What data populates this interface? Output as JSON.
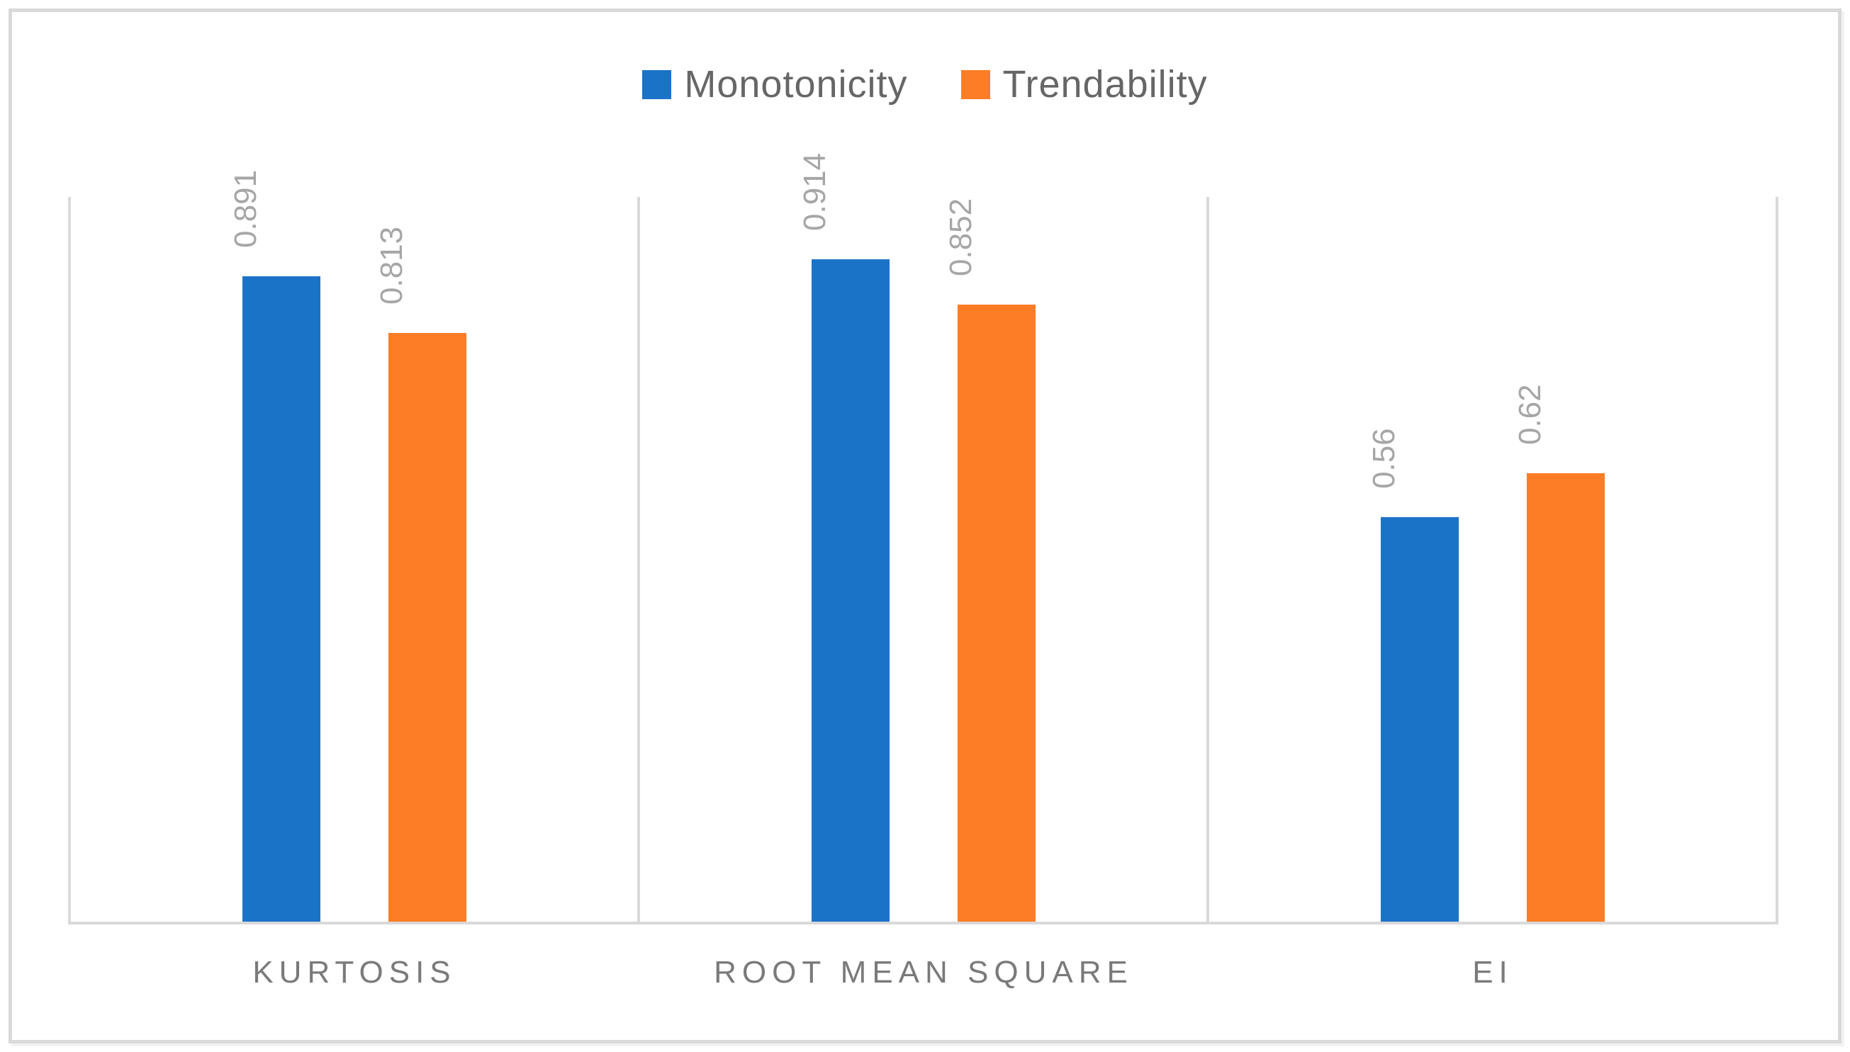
{
  "chart_data": {
    "type": "bar",
    "title": "",
    "xlabel": "",
    "ylabel": "",
    "categories": [
      "KURTOSIS",
      "ROOT MEAN SQUARE",
      "EI"
    ],
    "series": [
      {
        "name": "Monotonicity",
        "color": "#1B73C8",
        "values": [
          0.891,
          0.914,
          0.56
        ],
        "data_labels": [
          "0.891",
          "0.914",
          "0.56"
        ]
      },
      {
        "name": "Trendability",
        "color": "#FC7D26",
        "values": [
          0.813,
          0.852,
          0.62
        ],
        "data_labels": [
          "0.813",
          "0.852",
          "0.62"
        ]
      }
    ],
    "ylim": [
      0,
      1.0
    ],
    "y_axis_labels_visible": false,
    "grid": "vertical category separators only",
    "legend_position": "top-center",
    "data_label_rotation": -90,
    "colors": {
      "background": "#FFFFFF",
      "border": "#D9D9D9",
      "gridline": "#D9D9D9",
      "axis_line": "#D9D9D9",
      "legend_text": "#666666",
      "category_text": "#7A7A7A",
      "data_label_text": "#A6A6A6"
    }
  }
}
